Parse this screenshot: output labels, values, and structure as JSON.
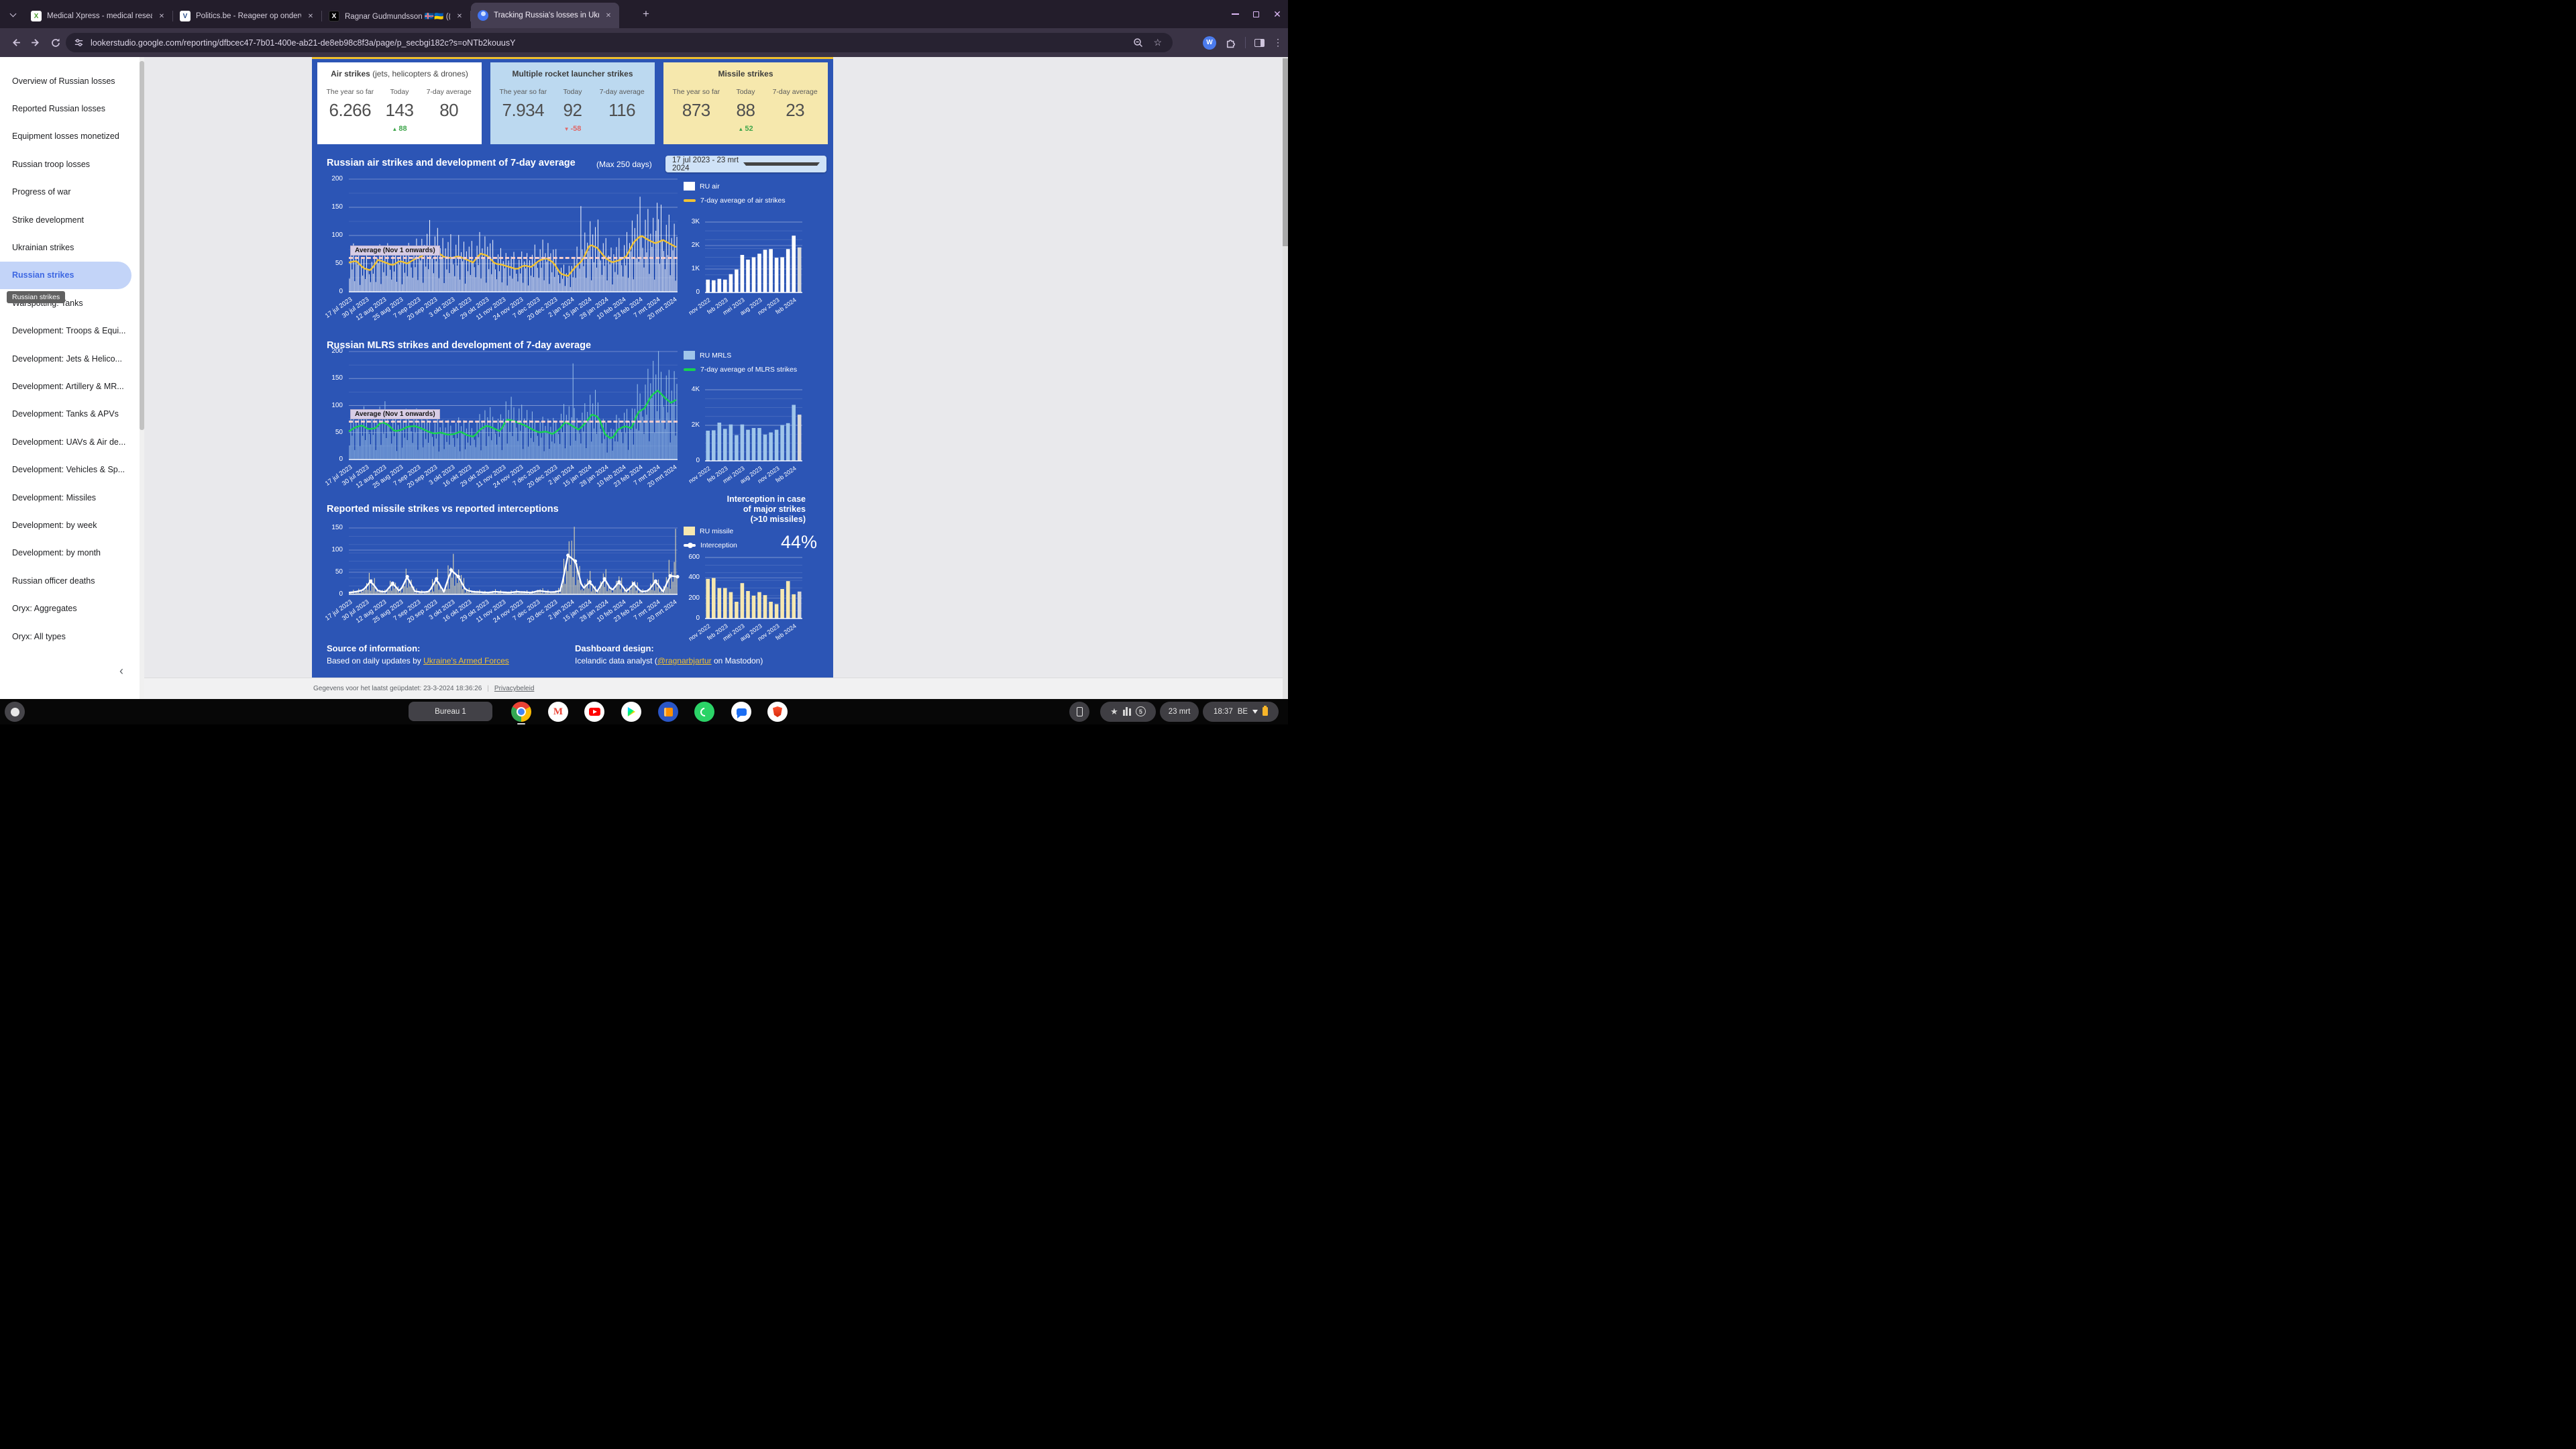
{
  "browser": {
    "tabs": [
      {
        "title": "Medical Xpress - medical resea",
        "favicon": "medicalxpress",
        "glyph": "X",
        "active": false
      },
      {
        "title": "Politics.be - Reageer op onderw",
        "favicon": "politics-be",
        "glyph": "V",
        "active": false
      },
      {
        "title": "Ragnar Gudmundsson 🇮🇸🇺🇦 ((@",
        "favicon": "x-twitter",
        "glyph": "X",
        "active": false
      },
      {
        "title": "Tracking Russia's losses in Ukr",
        "favicon": "looker-studio",
        "glyph": "",
        "active": true
      }
    ],
    "close_glyph": "✕",
    "new_tab_label": "+",
    "url": "lookerstudio.google.com/reporting/dfbcec47-7b01-400e-ab21-de8eb98c8f3a/page/p_secbgi182c?s=oNTb2kouusY",
    "extension_badge": "W"
  },
  "sidebar": {
    "items": [
      "Overview of Russian losses",
      "Reported Russian losses",
      "Equipment losses monetized",
      "Russian troop losses",
      "Progress of war",
      "Strike development",
      "Ukrainian strikes",
      "Russian strikes",
      "Warspotting: Tanks",
      "Development: Troops & Equi...",
      "Development: Jets & Helico...",
      "Development: Artillery & MR...",
      "Development: Tanks & APVs",
      "Development: UAVs & Air de...",
      "Development: Vehicles & Sp...",
      "Development: Missiles",
      "Development: by week",
      "Development: by month",
      "Russian officer deaths",
      "Oryx: Aggregates",
      "Oryx: All types"
    ],
    "active_index": 7,
    "tooltip": "Russian strikes",
    "collapse_glyph": "‹"
  },
  "dashboard": {
    "cards": [
      {
        "title_bold": "Air strikes",
        "title_rest": " (jets, helicopters & drones)",
        "bg": "#ffffff",
        "columns": [
          "The year so far",
          "Today",
          "7-day average"
        ],
        "values": [
          "6.266",
          "143",
          "80"
        ],
        "delta": {
          "under_column": 1,
          "text": "88",
          "dir": "up",
          "color": "#3fa64b"
        }
      },
      {
        "title_bold": "Multiple rocket launcher strikes",
        "title_rest": "",
        "bg": "#bcd9f0",
        "columns": [
          "The year so far",
          "Today",
          "7-day average"
        ],
        "values": [
          "7.934",
          "92",
          "116"
        ],
        "delta": {
          "under_column": 1,
          "text": "-58",
          "dir": "down",
          "color": "#e06666"
        }
      },
      {
        "title_bold": "Missile strikes",
        "title_rest": "",
        "bg": "#f6e8ad",
        "columns": [
          "The year so far",
          "Today",
          "7-day average"
        ],
        "values": [
          "873",
          "88",
          "23"
        ],
        "delta": {
          "under_column": 1,
          "text": "52",
          "dir": "up",
          "color": "#3fa64b"
        }
      }
    ],
    "chart1_title": "Russian air strikes and development of 7-day average",
    "max_note": "(Max 250 days)",
    "date_range": "17 jul 2023 - 23 mrt 2024",
    "chart2_title": "Russian MLRS strikes and development of 7-day average",
    "chart3_title": "Reported missile strikes vs reported interceptions",
    "interception_note": "Interception in case\nof major strikes\n(>10 missiles)",
    "interception_pct": "44%",
    "source": {
      "heading": "Source of information:",
      "prefix": "Based on daily updates by ",
      "link": "Ukraine's Armed Forces"
    },
    "design": {
      "heading": "Dashboard design:",
      "prefix": "Icelandic data analyst (",
      "link": "@ragnarbjartur",
      "suffix": " on Mastodon)"
    }
  },
  "statusbar": {
    "updated": "Gegevens voor het laatst geüpdatet: 23-3-2024 18:36:26",
    "privacy": "Privacybeleid"
  },
  "taskbar": {
    "desk_button": "Bureau 1",
    "apps": [
      "chrome",
      "gmail",
      "youtube",
      "google-play",
      "reader",
      "whatsapp",
      "chat",
      "brave"
    ],
    "notification_count": "5",
    "date": "23 mrt",
    "time": "18:37",
    "keyboard_layout": "BE"
  },
  "colors": {
    "dashboard_bg": "#2c55b5",
    "dashboard_top_strip": "#f0c02c",
    "accent_yellow_link": "#f1c232",
    "air_line": "#f1c232",
    "mlrs_line": "#17d24f",
    "mlrs_bar": "#9fc5ea",
    "missile_bar": "#f6e8b0",
    "average_dash": "#f3cccc",
    "incomplete_month_bar": "#d8d8d8"
  },
  "chart_data": [
    {
      "id": "air_daily",
      "type": "bar",
      "title": "Russian air strikes and development of 7-day average",
      "series": [
        {
          "name": "RU air",
          "role": "daily-bars"
        },
        {
          "name": "7-day average of air strikes",
          "role": "line"
        }
      ],
      "n_days": 250,
      "ylim": [
        0,
        200
      ],
      "yticks": [
        0,
        50,
        100,
        150,
        200
      ],
      "x_ticks": [
        "17 jul 2023",
        "30 jul 2023",
        "12 aug 2023",
        "25 aug 2023",
        "7 sep 2023",
        "20 sep 2023",
        "3 okt 2023",
        "16 okt 2023",
        "29 okt 2023",
        "11 nov 2023",
        "24 nov 2023",
        "7 dec 2023",
        "20 dec 2023",
        "2 jan 2024",
        "15 jan 2024",
        "28 jan 2024",
        "10 feb 2024",
        "23 feb 2024",
        "7 mrt 2024",
        "20 mrt 2024"
      ],
      "avg_line": [
        52,
        55,
        42,
        38,
        57,
        52,
        47,
        55,
        50,
        58,
        63,
        75,
        72,
        62,
        60,
        63,
        58,
        52,
        68,
        64,
        50,
        48,
        44,
        40,
        47,
        44,
        55,
        60,
        52,
        32,
        28,
        44,
        56,
        84,
        78,
        62,
        52,
        56,
        63,
        88,
        100,
        92,
        86,
        92,
        85,
        78
      ],
      "bar_jitter": [
        0.45,
        1.35,
        0.75,
        1.6,
        0.35,
        1.15,
        0.9,
        1.5,
        0.25,
        1.25,
        0.65,
        1.45,
        0.55,
        1.7,
        1.0,
        0.8
      ],
      "spikes": [
        {
          "i": 176,
          "v": 152
        },
        {
          "i": 234,
          "v": 158
        }
      ],
      "annotation": {
        "label": "Average (Nov 1 onwards)",
        "value": 60
      },
      "legend": [
        {
          "label": "RU air"
        },
        {
          "label": "7-day average of air strikes"
        }
      ],
      "grid": true,
      "legend_position": "right"
    },
    {
      "id": "air_monthly",
      "type": "bar",
      "months": [
        "nov 2022",
        "dec 2022",
        "jan 2023",
        "feb 2023",
        "mrt 2023",
        "apr 2023",
        "mei 2023",
        "jun 2023",
        "jul 2023",
        "aug 2023",
        "sep 2023",
        "okt 2023",
        "nov 2023",
        "dec 2023",
        "jan 2024",
        "feb 2024",
        "mrt 2024"
      ],
      "values": [
        550,
        520,
        580,
        550,
        780,
        980,
        1600,
        1400,
        1500,
        1650,
        1820,
        1850,
        1480,
        1500,
        1850,
        2420,
        1920
      ],
      "ylim": [
        0,
        3000
      ],
      "yticks": [
        {
          "v": 0,
          "l": "0"
        },
        {
          "v": 1000,
          "l": "1K"
        },
        {
          "v": 2000,
          "l": "2K"
        },
        {
          "v": 3000,
          "l": "3K"
        }
      ],
      "x_tick_idx": [
        0,
        3,
        6,
        9,
        12,
        15
      ],
      "x_tick_labels": [
        "nov 2022",
        "feb 2023",
        "mei 2023",
        "aug 2023",
        "nov 2023",
        "feb 2024"
      ],
      "last_month_incomplete": true
    },
    {
      "id": "mlrs_daily",
      "type": "bar",
      "title": "Russian MLRS strikes and development of 7-day average",
      "series": [
        {
          "name": "RU MRLS",
          "role": "daily-bars"
        },
        {
          "name": "7-day average of MLRS strikes",
          "role": "line"
        }
      ],
      "n_days": 250,
      "ylim": [
        0,
        200
      ],
      "yticks": [
        0,
        50,
        100,
        150,
        200
      ],
      "x_ticks": [
        "17 jul 2023",
        "30 jul 2023",
        "12 aug 2023",
        "25 aug 2023",
        "7 sep 2023",
        "20 sep 2023",
        "3 okt 2023",
        "16 okt 2023",
        "29 okt 2023",
        "11 nov 2023",
        "24 nov 2023",
        "7 dec 2023",
        "20 dec 2023",
        "2 jan 2024",
        "15 jan 2024",
        "28 jan 2024",
        "10 feb 2024",
        "23 feb 2024",
        "7 mrt 2024",
        "20 mrt 2024"
      ],
      "avg_line": [
        52,
        60,
        63,
        56,
        58,
        70,
        64,
        52,
        55,
        61,
        62,
        58,
        52,
        48,
        50,
        46,
        47,
        52,
        45,
        42,
        56,
        63,
        58,
        52,
        74,
        72,
        67,
        62,
        55,
        50,
        52,
        47,
        56,
        70,
        62,
        55,
        68,
        84,
        78,
        46,
        38,
        56,
        62,
        58,
        88,
        95,
        118,
        128,
        115,
        105,
        112
      ],
      "bar_jitter": [
        0.5,
        1.4,
        0.8,
        1.55,
        0.3,
        1.2,
        0.95,
        1.5,
        0.4,
        1.25,
        0.7,
        1.6,
        0.6,
        1.35,
        1.0,
        0.85
      ],
      "spikes": [
        {
          "i": 170,
          "v": 178
        }
      ],
      "annotation": {
        "label": "Average (Nov 1 onwards)",
        "value": 70
      },
      "legend": [
        {
          "label": "RU MRLS"
        },
        {
          "label": "7-day average of MLRS strikes"
        }
      ],
      "grid": true,
      "legend_position": "right"
    },
    {
      "id": "mlrs_monthly",
      "type": "bar",
      "months": [
        "nov 2022",
        "dec 2022",
        "jan 2023",
        "feb 2023",
        "mrt 2023",
        "apr 2023",
        "mei 2023",
        "jun 2023",
        "jul 2023",
        "aug 2023",
        "sep 2023",
        "okt 2023",
        "nov 2023",
        "dec 2023",
        "jan 2024",
        "feb 2024",
        "mrt 2024"
      ],
      "values": [
        1700,
        1720,
        2150,
        1800,
        2050,
        1450,
        2050,
        1750,
        1850,
        1850,
        1480,
        1600,
        1750,
        2020,
        2120,
        3150,
        2600
      ],
      "ylim": [
        0,
        4000
      ],
      "yticks": [
        {
          "v": 0,
          "l": "0"
        },
        {
          "v": 2000,
          "l": "2K"
        },
        {
          "v": 4000,
          "l": "4K"
        }
      ],
      "x_tick_idx": [
        0,
        3,
        6,
        9,
        12,
        15
      ],
      "x_tick_labels": [
        "nov 2022",
        "feb 2023",
        "mei 2023",
        "aug 2023",
        "nov 2023",
        "feb 2024"
      ],
      "last_month_incomplete": true
    },
    {
      "id": "missile_daily",
      "type": "bar",
      "title": "Reported missile strikes vs reported interceptions",
      "series": [
        {
          "name": "RU missile",
          "role": "daily-bars"
        },
        {
          "name": "Interception",
          "role": "line-with-markers"
        }
      ],
      "n_days": 250,
      "ylim": [
        0,
        150
      ],
      "yticks": [
        0,
        50,
        100,
        150
      ],
      "x_ticks": [
        "17 jul 2023",
        "30 jul 2023",
        "12 aug 2023",
        "25 aug 2023",
        "7 sep 2023",
        "20 sep 2023",
        "3 okt 2023",
        "16 okt 2023",
        "29 okt 2023",
        "11 nov 2023",
        "24 nov 2023",
        "7 dec 2023",
        "20 dec 2023",
        "2 jan 2024",
        "15 jan 2024",
        "28 jan 2024",
        "10 feb 2024",
        "23 feb 2024",
        "7 mrt 2024",
        "20 mrt 2024"
      ],
      "avg_line": [
        4,
        6,
        10,
        30,
        8,
        5,
        25,
        6,
        40,
        7,
        5,
        6,
        35,
        5,
        55,
        40,
        10,
        6,
        5,
        4,
        6,
        5,
        4,
        6,
        5,
        4,
        8,
        6,
        5,
        8,
        88,
        75,
        12,
        28,
        6,
        35,
        8,
        28,
        6,
        24,
        6,
        8,
        30,
        6,
        42,
        40
      ],
      "bar_jitter": [
        0.8,
        1.5,
        0.5,
        2.0,
        0.3,
        1.2,
        0.7,
        1.8,
        0.4,
        1.0,
        0.6,
        1.4
      ],
      "spikes": [
        {
          "i": 248,
          "v": 148
        }
      ],
      "legend": [
        {
          "label": "RU missile"
        },
        {
          "label": "Interception"
        }
      ],
      "grid": true,
      "legend_position": "right"
    },
    {
      "id": "missile_monthly",
      "type": "bar",
      "months": [
        "nov 2022",
        "dec 2022",
        "jan 2023",
        "feb 2023",
        "mrt 2023",
        "apr 2023",
        "mei 2023",
        "jun 2023",
        "jul 2023",
        "aug 2023",
        "sep 2023",
        "okt 2023",
        "nov 2023",
        "dec 2023",
        "jan 2024",
        "feb 2024",
        "mrt 2024"
      ],
      "values": [
        390,
        398,
        300,
        300,
        260,
        165,
        348,
        270,
        225,
        260,
        230,
        165,
        142,
        290,
        368,
        238,
        265
      ],
      "ylim": [
        0,
        600
      ],
      "yticks": [
        {
          "v": 0,
          "l": "0"
        },
        {
          "v": 200,
          "l": "200"
        },
        {
          "v": 400,
          "l": "400"
        },
        {
          "v": 600,
          "l": "600"
        }
      ],
      "x_tick_idx": [
        0,
        3,
        6,
        9,
        12,
        15
      ],
      "x_tick_labels": [
        "nov 2022",
        "feb 2023",
        "mei 2023",
        "aug 2023",
        "nov 2023",
        "feb 2024"
      ],
      "last_month_incomplete": true
    }
  ]
}
